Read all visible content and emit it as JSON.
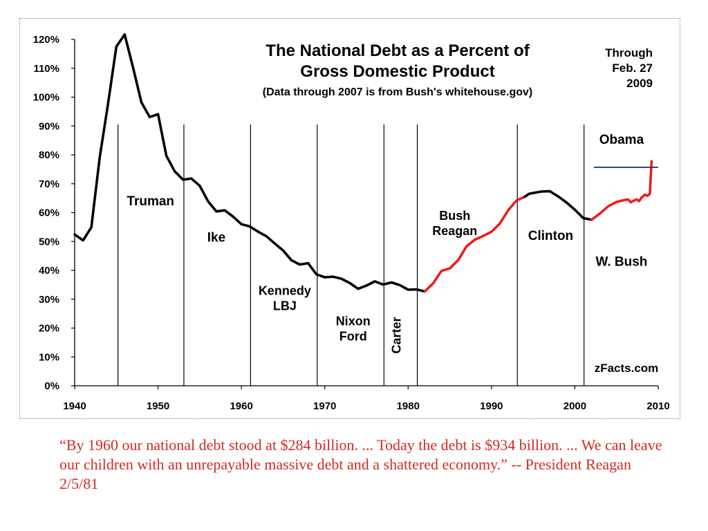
{
  "chart_data": {
    "type": "line",
    "title_lines": [
      "The National Debt as a Percent of",
      "Gross Domestic Product"
    ],
    "subtitle": "(Data through 2007 is from Bush's whitehouse.gov)",
    "date_note_lines": [
      "Through",
      "Feb. 27",
      "2009"
    ],
    "source": "zFacts.com",
    "xlim": [
      1940,
      2010
    ],
    "ylim": [
      0,
      120
    ],
    "x_ticks": [
      1940,
      1950,
      1960,
      1970,
      1980,
      1990,
      2000,
      2010
    ],
    "y_ticks": [
      0,
      10,
      20,
      30,
      40,
      50,
      60,
      70,
      80,
      90,
      100,
      110,
      120
    ],
    "y_tick_labels": [
      "0%",
      "10%",
      "20%",
      "30%",
      "40%",
      "50%",
      "60%",
      "70%",
      "80%",
      "90%",
      "100%",
      "110%",
      "120%"
    ],
    "x_tick_labels": [
      "1940",
      "1950",
      "1960",
      "1970",
      "1980",
      "1990",
      "2000",
      "2010"
    ],
    "grid": false,
    "series": [
      {
        "color": "#000000",
        "points": [
          [
            1940,
            52.4
          ],
          [
            1941,
            50.4
          ],
          [
            1942,
            54.9
          ],
          [
            1943,
            79.1
          ],
          [
            1944,
            97.6
          ],
          [
            1945,
            117.5
          ],
          [
            1946,
            121.7
          ],
          [
            1947,
            110.3
          ],
          [
            1948,
            98.2
          ],
          [
            1949,
            93.1
          ],
          [
            1950,
            94.1
          ],
          [
            1951,
            79.7
          ],
          [
            1952,
            74.3
          ],
          [
            1953,
            71.4
          ],
          [
            1954,
            71.8
          ],
          [
            1955,
            69.3
          ],
          [
            1956,
            63.9
          ],
          [
            1957,
            60.4
          ],
          [
            1958,
            60.8
          ],
          [
            1959,
            58.6
          ],
          [
            1960,
            56.0
          ],
          [
            1961,
            55.2
          ],
          [
            1962,
            53.4
          ],
          [
            1963,
            51.8
          ],
          [
            1964,
            49.3
          ],
          [
            1965,
            46.9
          ],
          [
            1966,
            43.5
          ],
          [
            1967,
            42.0
          ],
          [
            1968,
            42.5
          ],
          [
            1969,
            38.6
          ],
          [
            1970,
            37.6
          ],
          [
            1971,
            37.8
          ],
          [
            1972,
            37.1
          ],
          [
            1973,
            35.6
          ],
          [
            1974,
            33.6
          ],
          [
            1975,
            34.7
          ],
          [
            1976,
            36.2
          ],
          [
            1977,
            35.1
          ],
          [
            1978,
            35.8
          ],
          [
            1979,
            34.9
          ],
          [
            1980,
            33.3
          ],
          [
            1981,
            33.4
          ],
          [
            1982,
            32.7
          ]
        ]
      },
      {
        "color": "#ee1c1c",
        "points": [
          [
            1982,
            32.7
          ],
          [
            1983,
            35.5
          ],
          [
            1984,
            39.8
          ],
          [
            1985,
            40.7
          ],
          [
            1986,
            43.5
          ],
          [
            1987,
            48.3
          ],
          [
            1988,
            50.6
          ],
          [
            1989,
            51.9
          ],
          [
            1990,
            53.4
          ],
          [
            1991,
            56.2
          ],
          [
            1992,
            60.8
          ],
          [
            1993,
            64.2
          ],
          [
            1994,
            65.5
          ]
        ]
      },
      {
        "color": "#000000",
        "points": [
          [
            1994,
            65.5
          ],
          [
            1994.5,
            66.5
          ],
          [
            1995,
            66.8
          ],
          [
            1996,
            67.3
          ],
          [
            1997,
            67.4
          ],
          [
            1998,
            65.6
          ],
          [
            1999,
            63.5
          ],
          [
            2000,
            61.0
          ],
          [
            2001,
            58.1
          ],
          [
            2002,
            57.5
          ]
        ]
      },
      {
        "color": "#ee1c1c",
        "points": [
          [
            2002,
            57.5
          ],
          [
            2003,
            59.7
          ],
          [
            2004,
            62.2
          ],
          [
            2005,
            63.7
          ],
          [
            2006,
            64.4
          ],
          [
            2006.4,
            64.5
          ],
          [
            2006.7,
            63.6
          ],
          [
            2007,
            64.0
          ],
          [
            2007.4,
            64.6
          ],
          [
            2007.7,
            64.0
          ],
          [
            2008,
            65.2
          ],
          [
            2008.4,
            66.2
          ],
          [
            2008.7,
            65.8
          ],
          [
            2009,
            66.5
          ],
          [
            2009.1,
            72.0
          ],
          [
            2009.2,
            77.8
          ]
        ]
      }
    ],
    "reference_line": {
      "x_from": 2002.3,
      "x_to": 2010,
      "y": 75.7,
      "color": "#1f3c88"
    },
    "divider_years": [
      1945.2,
      1953.1,
      1961.1,
      1969.1,
      1977.1,
      1981.1,
      1993.1,
      2001.1
    ],
    "divider_top_value": 90.5,
    "era_labels": [
      {
        "name": "truman",
        "lines": [
          "Truman"
        ],
        "x": 1949.1,
        "y": 62.5
      },
      {
        "name": "ike",
        "lines": [
          "Ike"
        ],
        "x": 1957.0,
        "y": 50.0
      },
      {
        "name": "kennedy-lbj",
        "lines": [
          "Kennedy",
          "LBJ"
        ],
        "x": 1965.2,
        "y": 31.5
      },
      {
        "name": "nixon-ford",
        "lines": [
          "Nixon",
          "Ford"
        ],
        "x": 1973.4,
        "y": 21.0
      },
      {
        "name": "bush-reagan",
        "lines": [
          "Bush",
          "Reagan"
        ],
        "x": 1985.6,
        "y": 57.5
      },
      {
        "name": "clinton",
        "lines": [
          "Clinton"
        ],
        "x": 1997.1,
        "y": 50.5
      },
      {
        "name": "w-bush",
        "lines": [
          "W. Bush"
        ],
        "x": 2005.6,
        "y": 41.5
      },
      {
        "name": "obama",
        "lines": [
          "Obama"
        ],
        "x": 2005.6,
        "y": 83.8
      }
    ],
    "carter_label": {
      "text": "Carter",
      "x": 1979.1,
      "y": 17.5
    }
  },
  "quote": "“By 1960 our national debt stood at $284 billion. ... Today the debt is $934 billion. ... We can leave our children with an unrepayable massive debt and a shattered economy.” -- President Reagan 2/5/81"
}
